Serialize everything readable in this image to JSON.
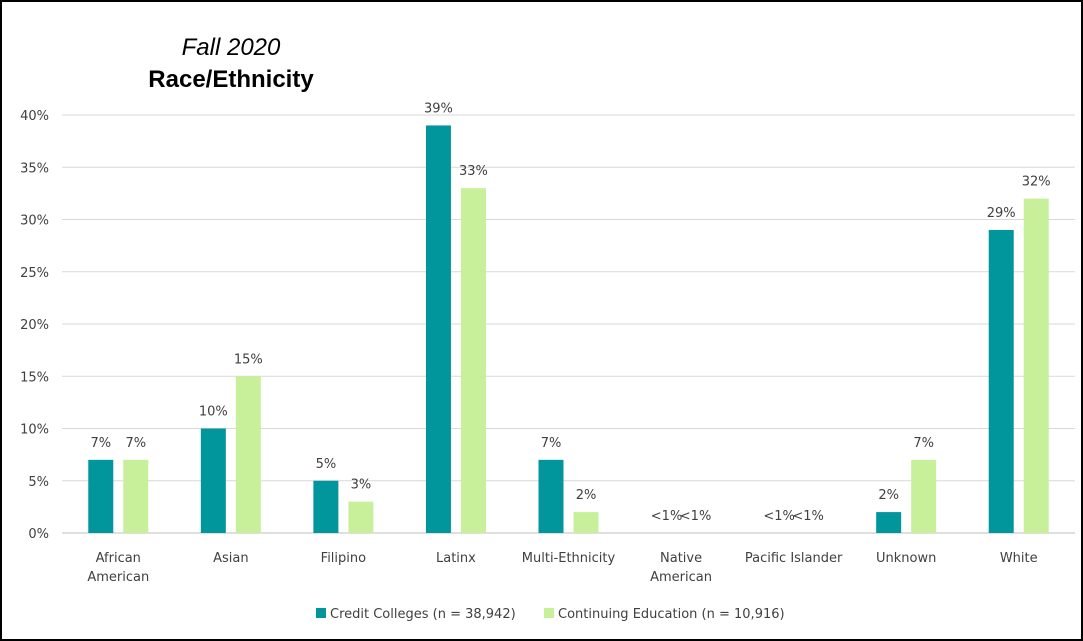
{
  "chart_data": {
    "type": "bar",
    "title": "Race/Ethnicity",
    "subtitle": "Fall 2020",
    "xlabel": "",
    "ylabel": "",
    "ylim": [
      0,
      40
    ],
    "y_ticks": [
      "0%",
      "5%",
      "10%",
      "15%",
      "20%",
      "25%",
      "30%",
      "35%",
      "40%"
    ],
    "y_tick_values": [
      0,
      5,
      10,
      15,
      20,
      25,
      30,
      35,
      40
    ],
    "grid": true,
    "legend_position": "bottom",
    "categories": [
      [
        "African",
        "American"
      ],
      [
        "Asian"
      ],
      [
        "Filipino"
      ],
      [
        "Latinx"
      ],
      [
        "Multi-Ethnicity"
      ],
      [
        "Native",
        "American"
      ],
      [
        "Pacific Islander"
      ],
      [
        "Unknown"
      ],
      [
        "White"
      ]
    ],
    "series": [
      {
        "name": "Credit Colleges (n = 38,942)",
        "color": "#00969B",
        "values": [
          7,
          10,
          5,
          39,
          7,
          0,
          0,
          2,
          29
        ],
        "labels": [
          "7%",
          "10%",
          "5%",
          "39%",
          "7%",
          "<1%",
          "<1%",
          "2%",
          "29%"
        ]
      },
      {
        "name": "Continuing Education (n = 10,916)",
        "color": "#C8F09A",
        "values": [
          7,
          15,
          3,
          33,
          2,
          0,
          0,
          7,
          32
        ],
        "labels": [
          "7%",
          "15%",
          "3%",
          "33%",
          "2%",
          "<1%",
          "<1%",
          "7%",
          "32%"
        ]
      }
    ]
  }
}
